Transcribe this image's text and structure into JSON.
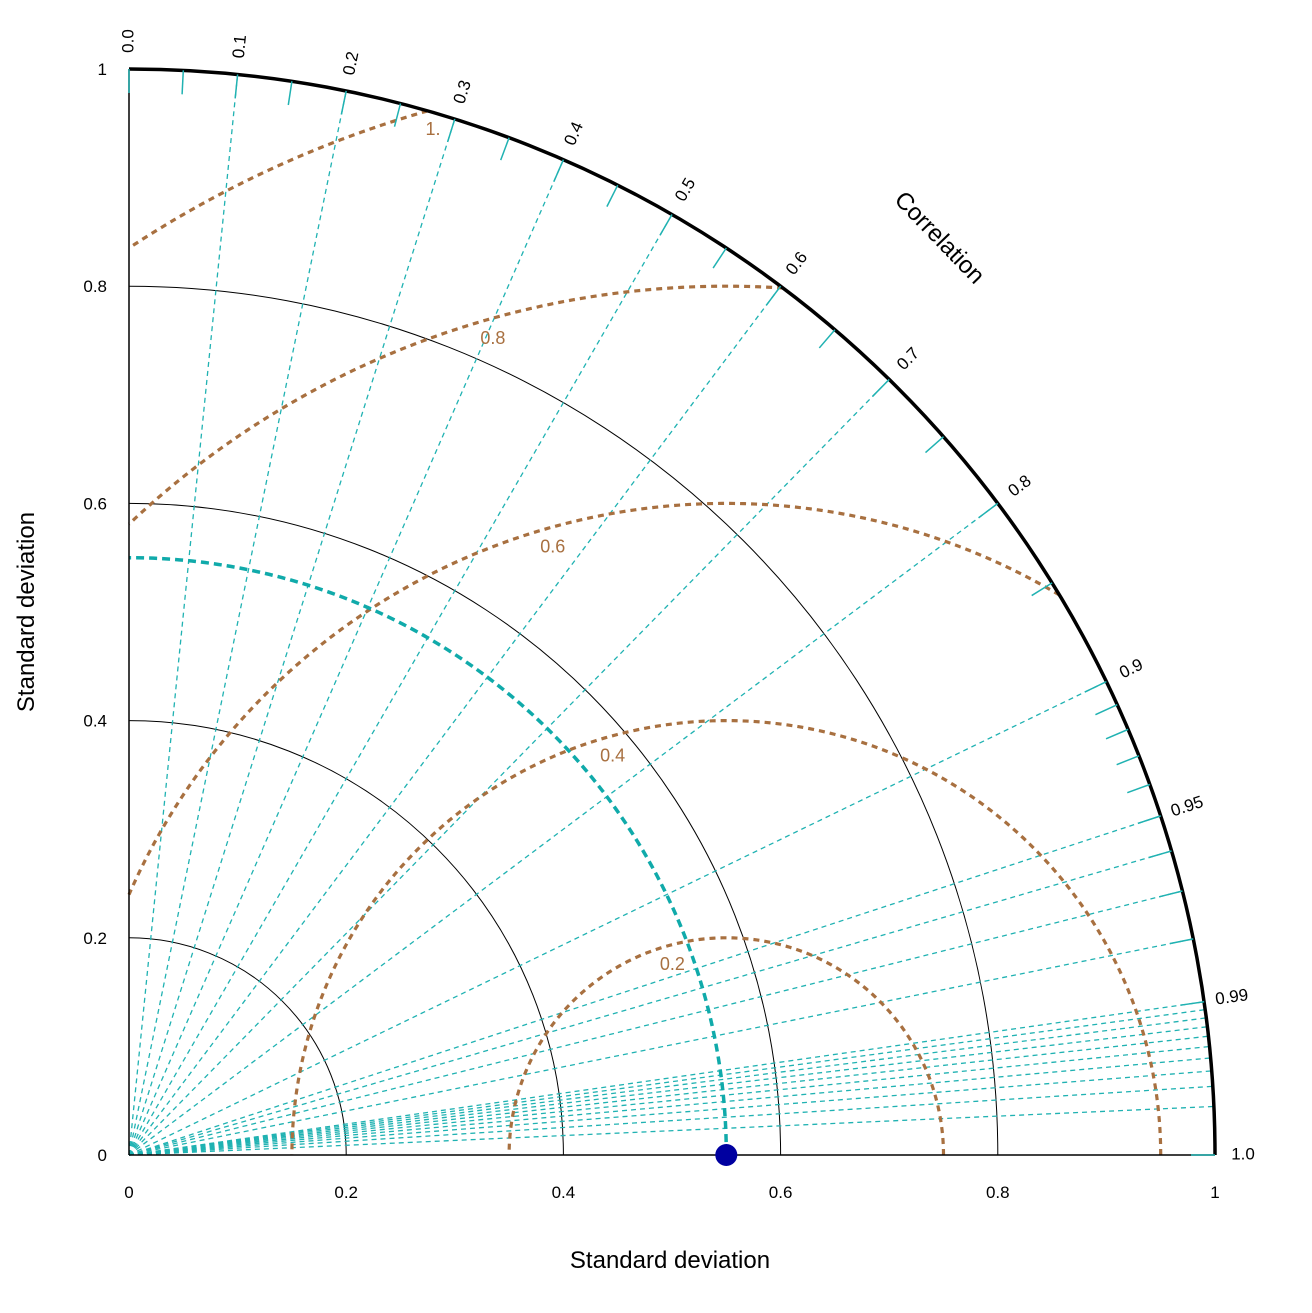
{
  "chart_data": {
    "type": "taylor",
    "xlabel": "Standard deviation",
    "ylabel": "Standard deviation",
    "corr_label": "Correlation",
    "sd_max": 1.0,
    "sd_ticks": [
      {
        "v": 0,
        "label": "0"
      },
      {
        "v": 0.2,
        "label": "0.2"
      },
      {
        "v": 0.4,
        "label": "0.4"
      },
      {
        "v": 0.6,
        "label": "0.6"
      },
      {
        "v": 0.8,
        "label": "0.8"
      },
      {
        "v": 1.0,
        "label": "1"
      }
    ],
    "sd_arcs": [
      0.2,
      0.4,
      0.6,
      0.8
    ],
    "corr_ticks": [
      {
        "v": 0.0,
        "label": "0.0"
      },
      {
        "v": 0.1,
        "label": "0.1"
      },
      {
        "v": 0.2,
        "label": "0.2"
      },
      {
        "v": 0.3,
        "label": "0.3"
      },
      {
        "v": 0.4,
        "label": "0.4"
      },
      {
        "v": 0.5,
        "label": "0.5"
      },
      {
        "v": 0.6,
        "label": "0.6"
      },
      {
        "v": 0.7,
        "label": "0.7"
      },
      {
        "v": 0.8,
        "label": "0.8"
      },
      {
        "v": 0.9,
        "label": "0.9"
      },
      {
        "v": 0.95,
        "label": "0.95"
      },
      {
        "v": 0.99,
        "label": "0.99"
      },
      {
        "v": 1.0,
        "label": "1.0"
      }
    ],
    "corr_minor_ticks": [
      0.05,
      0.15,
      0.25,
      0.35,
      0.45,
      0.55,
      0.65,
      0.75,
      0.85,
      0.91,
      0.92,
      0.93,
      0.94,
      0.96,
      0.97,
      0.98
    ],
    "corr_rays": [
      0.1,
      0.2,
      0.3,
      0.4,
      0.5,
      0.6,
      0.7,
      0.8,
      0.9,
      0.95,
      0.96,
      0.97,
      0.98,
      0.99,
      0.991,
      0.992,
      0.993,
      0.994,
      0.995,
      0.996,
      0.997,
      0.998,
      0.999
    ],
    "reference_sd": 0.55,
    "rms_contours": [
      {
        "v": 0.2,
        "label": "0.2"
      },
      {
        "v": 0.4,
        "label": "0.4"
      },
      {
        "v": 0.6,
        "label": "0.6"
      },
      {
        "v": 0.8,
        "label": "0.8"
      },
      {
        "v": 1.0,
        "label": "1."
      }
    ],
    "points": [
      {
        "sd": 0.55,
        "corr": 1.0,
        "color": "#0000a0"
      }
    ],
    "colors": {
      "rays": "#20b2b2",
      "rms": "#a87040",
      "reference_arc": "#10aaaa",
      "axis": "#000000",
      "point": "#0000a0"
    }
  }
}
